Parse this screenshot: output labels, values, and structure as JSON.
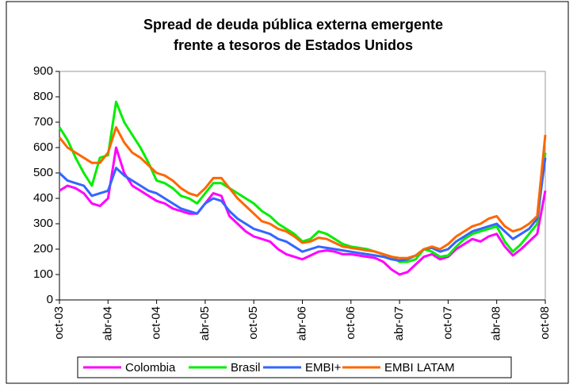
{
  "chart_data": {
    "type": "line",
    "title": [
      "Spread de deuda pública externa emergente",
      "frente a tesoros de Estados Unidos"
    ],
    "categories": [
      "oct-03",
      null,
      null,
      null,
      null,
      null,
      "abr-04",
      null,
      null,
      null,
      null,
      null,
      "oct-04",
      null,
      null,
      null,
      null,
      null,
      "abr-05",
      null,
      null,
      null,
      null,
      null,
      "oct-05",
      null,
      null,
      null,
      null,
      null,
      "abr-06",
      null,
      null,
      null,
      null,
      null,
      "oct-06",
      null,
      null,
      null,
      null,
      null,
      "abr-07",
      null,
      null,
      null,
      null,
      null,
      "oct-07",
      null,
      null,
      null,
      null,
      null,
      "abr-08",
      null,
      null,
      null,
      null,
      null,
      "oct-08"
    ],
    "series": [
      {
        "name": "Colombia",
        "color": "#ff00ff",
        "values": [
          430,
          450,
          440,
          420,
          380,
          370,
          400,
          600,
          500,
          450,
          430,
          410,
          390,
          380,
          360,
          350,
          340,
          340,
          380,
          420,
          410,
          330,
          300,
          270,
          250,
          240,
          230,
          200,
          180,
          170,
          160,
          175,
          190,
          195,
          190,
          180,
          180,
          175,
          170,
          165,
          150,
          120,
          100,
          110,
          140,
          170,
          180,
          160,
          170,
          200,
          220,
          240,
          230,
          250,
          260,
          210,
          175,
          200,
          230,
          260,
          430
        ]
      },
      {
        "name": "Brasil",
        "color": "#00ee00",
        "values": [
          680,
          630,
          560,
          500,
          450,
          560,
          570,
          780,
          700,
          650,
          600,
          540,
          470,
          460,
          440,
          410,
          400,
          380,
          420,
          460,
          460,
          440,
          420,
          400,
          380,
          350,
          330,
          300,
          280,
          260,
          230,
          240,
          270,
          260,
          240,
          220,
          210,
          205,
          200,
          190,
          180,
          170,
          150,
          150,
          160,
          200,
          190,
          170,
          175,
          210,
          240,
          260,
          270,
          280,
          290,
          230,
          190,
          220,
          260,
          300,
          580
        ]
      },
      {
        "name": "EMBI+",
        "color": "#3366ff",
        "values": [
          500,
          470,
          460,
          450,
          410,
          420,
          430,
          520,
          490,
          470,
          450,
          430,
          420,
          400,
          380,
          360,
          350,
          340,
          380,
          400,
          390,
          350,
          320,
          300,
          280,
          270,
          260,
          240,
          230,
          210,
          190,
          200,
          210,
          205,
          200,
          195,
          190,
          185,
          180,
          175,
          170,
          160,
          155,
          160,
          175,
          200,
          205,
          190,
          200,
          230,
          250,
          270,
          280,
          290,
          300,
          270,
          240,
          260,
          280,
          320,
          560
        ]
      },
      {
        "name": "EMBI LATAM",
        "color": "#ff6600",
        "values": [
          640,
          600,
          580,
          560,
          540,
          540,
          580,
          680,
          620,
          580,
          560,
          530,
          500,
          490,
          470,
          440,
          420,
          410,
          440,
          480,
          480,
          440,
          400,
          370,
          340,
          310,
          300,
          280,
          270,
          250,
          225,
          230,
          245,
          240,
          225,
          210,
          205,
          200,
          195,
          190,
          180,
          170,
          165,
          165,
          175,
          200,
          210,
          200,
          220,
          250,
          270,
          290,
          300,
          320,
          330,
          290,
          270,
          280,
          300,
          330,
          650
        ]
      }
    ],
    "ylim": [
      0,
      900
    ],
    "yticks": [
      0,
      100,
      200,
      300,
      400,
      500,
      600,
      700,
      800,
      900
    ],
    "grid": false,
    "legend": "bottom"
  }
}
